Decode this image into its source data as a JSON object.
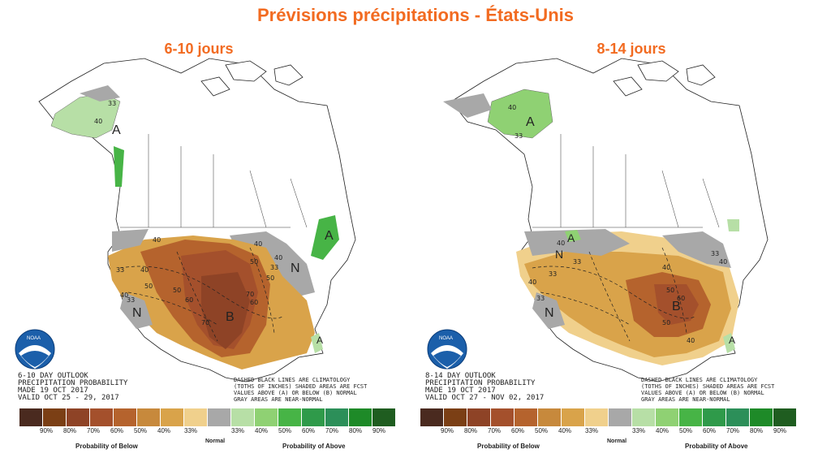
{
  "title": "Prévisions précipitations - États-Unis",
  "colors": {
    "title": "#f26b21",
    "below": [
      "#4a2a1f",
      "#7b3f15",
      "#8e4326",
      "#a4502c",
      "#b5632d",
      "#c7893c",
      "#d9a34a",
      "#f0d08c"
    ],
    "near": "#a8a8a8",
    "above": [
      "#b7dfa6",
      "#8fd173",
      "#47b446",
      "#2f9a4a",
      "#2c8f59",
      "#1e8a28",
      "#1d6e3c",
      "#1f5d20"
    ]
  },
  "panels": [
    {
      "subtitle": "6-10 jours",
      "contour_labels": [
        "33",
        "40",
        "40",
        "50",
        "40",
        "33",
        "40",
        "50",
        "60",
        "70",
        "50",
        "40",
        "33",
        "60",
        "70",
        "50",
        "40",
        "33"
      ],
      "category_letters": [
        "A",
        "A",
        "N",
        "B",
        "N",
        "A"
      ],
      "info": [
        "6-10 DAY OUTLOOK",
        "PRECIPITATION PROBABILITY",
        "MADE   19 OCT 2017",
        "VALID   OCT 25 - 29, 2017"
      ],
      "note": [
        "DASHED BLACK LINES ARE CLIMATOLOGY",
        "(TOTHS OF INCHES) SHADED AREAS ARE FCST",
        "VALUES ABOVE (A) OR BELOW (B) NORMAL",
        "GRAY AREAS ARE NEAR-NORMAL"
      ],
      "legend": {
        "below_pcts": [
          "90%",
          "80%",
          "70%",
          "60%",
          "50%",
          "40%",
          "33%"
        ],
        "above_pcts": [
          "33%",
          "40%",
          "50%",
          "60%",
          "70%",
          "80%",
          "90%"
        ],
        "below_label": "Probability of Below",
        "normal_label": "Normal",
        "above_label": "Probability of Above"
      }
    },
    {
      "subtitle": "8-14 jours",
      "contour_labels": [
        "40",
        "33",
        "40",
        "33",
        "40",
        "33",
        "40",
        "50",
        "60",
        "50",
        "40",
        "33",
        "40",
        "33"
      ],
      "category_letters": [
        "A",
        "A",
        "N",
        "B",
        "N",
        "A"
      ],
      "info": [
        "8-14 DAY OUTLOOK",
        "PRECIPITATION PROBABILITY",
        "MADE   19 OCT 2017",
        "VALID   OCT 27 - NOV 02, 2017"
      ],
      "note": [
        "DASHED BLACK LINES ARE CLIMATOLOGY",
        "(TOTHS OF INCHES) SHADED AREAS ARE FCST",
        "VALUES ABOVE (A) OR BELOW (B) NORMAL",
        "GRAY AREAS ARE NEAR-NORMAL"
      ],
      "legend": {
        "below_pcts": [
          "90%",
          "80%",
          "70%",
          "60%",
          "50%",
          "40%",
          "33%"
        ],
        "above_pcts": [
          "33%",
          "40%",
          "50%",
          "60%",
          "70%",
          "80%",
          "90%"
        ],
        "below_label": "Probability of Below",
        "normal_label": "Normal",
        "above_label": "Probability of Above"
      }
    }
  ]
}
